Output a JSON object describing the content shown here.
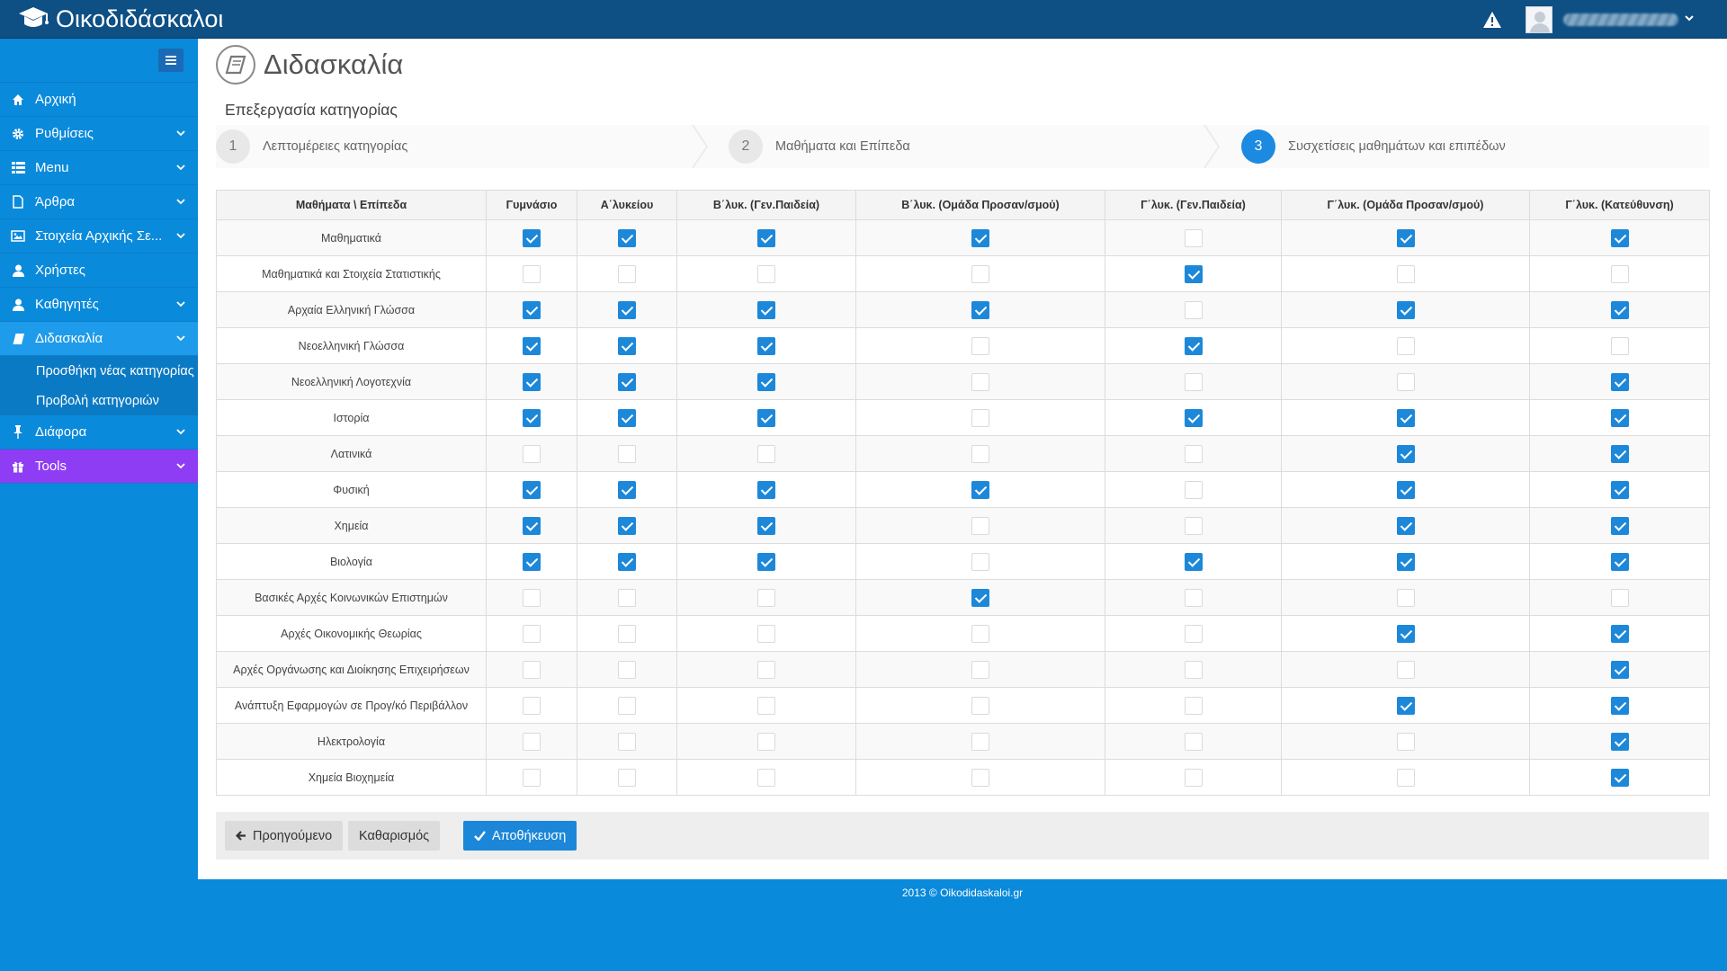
{
  "app": {
    "brand": "Οικοδιδάσκαλοι"
  },
  "topbar": {
    "alert_icon": "warning-icon",
    "user_caret_icon": "chevron-down-icon"
  },
  "sidebar": {
    "toggle_icon": "menu-toggle-icon",
    "items": [
      {
        "label": "Αρχική",
        "icon": "home-icon",
        "chevron": false
      },
      {
        "label": "Ρυθμίσεις",
        "icon": "gear-icon",
        "chevron": true
      },
      {
        "label": "Menu",
        "icon": "grid-icon",
        "chevron": true
      },
      {
        "label": "Άρθρα",
        "icon": "document-icon",
        "chevron": true
      },
      {
        "label": "Στοιχεία Αρχικής Σε...",
        "icon": "image-icon",
        "chevron": true
      },
      {
        "label": "Χρήστες",
        "icon": "user-icon",
        "chevron": false
      },
      {
        "label": "Καθηγητές",
        "icon": "user-icon",
        "chevron": true
      },
      {
        "label": "Διδασκαλία",
        "icon": "book-icon",
        "chevron": true
      },
      {
        "label": "Διάφορα",
        "icon": "pin-icon",
        "chevron": true
      },
      {
        "label": "Tools",
        "icon": "gift-icon",
        "chevron": true
      }
    ],
    "subitems": [
      {
        "label": "Προσθήκη νέας κατηγορίας"
      },
      {
        "label": "Προβολή κατηγοριών"
      }
    ]
  },
  "page": {
    "title": "Διδασκαλία",
    "section_title": "Επεξεργασία κατηγορίας"
  },
  "wizard": {
    "steps": [
      {
        "num": "1",
        "label": "Λεπτομέρειες κατηγορίας"
      },
      {
        "num": "2",
        "label": "Μαθήματα και Επίπεδα"
      },
      {
        "num": "3",
        "label": "Συσχετίσεις μαθημάτων και επιπέδων"
      }
    ],
    "current": "3"
  },
  "table": {
    "corner": "Μαθήματα \\ Επίπεδα",
    "columns": [
      "Γυμνάσιο",
      "Α΄λυκείου",
      "Β΄λυκ. (Γεν.Παιδεία)",
      "Β΄λυκ. (Ομάδα Προσαν/σμού)",
      "Γ΄λυκ. (Γεν.Παιδεία)",
      "Γ΄λυκ. (Ομάδα Προσαν/σμού)",
      "Γ΄λυκ. (Κατεύθυνση)"
    ],
    "rows": [
      {
        "subject": "Μαθηματικά",
        "checks": [
          true,
          true,
          true,
          true,
          false,
          true,
          true
        ]
      },
      {
        "subject": "Μαθηματικά και Στοιχεία Στατιστικής",
        "checks": [
          false,
          false,
          false,
          false,
          true,
          false,
          false
        ]
      },
      {
        "subject": "Αρχαία Ελληνική Γλώσσα",
        "checks": [
          true,
          true,
          true,
          true,
          false,
          true,
          true
        ]
      },
      {
        "subject": "Νεοελληνική Γλώσσα",
        "checks": [
          true,
          true,
          true,
          false,
          true,
          false,
          false
        ]
      },
      {
        "subject": "Νεοελληνική Λογοτεχνία",
        "checks": [
          true,
          true,
          true,
          false,
          false,
          false,
          true
        ]
      },
      {
        "subject": "Ιστορία",
        "checks": [
          true,
          true,
          true,
          false,
          true,
          true,
          true
        ]
      },
      {
        "subject": "Λατινικά",
        "checks": [
          false,
          false,
          false,
          false,
          false,
          true,
          true
        ]
      },
      {
        "subject": "Φυσική",
        "checks": [
          true,
          true,
          true,
          true,
          false,
          true,
          true
        ]
      },
      {
        "subject": "Χημεία",
        "checks": [
          true,
          true,
          true,
          false,
          false,
          true,
          true
        ]
      },
      {
        "subject": "Βιολογία",
        "checks": [
          true,
          true,
          true,
          false,
          true,
          true,
          true
        ]
      },
      {
        "subject": "Βασικές Αρχές Κοινωνικών Επιστημών",
        "checks": [
          false,
          false,
          false,
          true,
          false,
          false,
          false
        ]
      },
      {
        "subject": "Αρχές Οικονομικής Θεωρίας",
        "checks": [
          false,
          false,
          false,
          false,
          false,
          true,
          true
        ]
      },
      {
        "subject": "Αρχές Οργάνωσης και Διοίκησης Επιχειρήσεων",
        "checks": [
          false,
          false,
          false,
          false,
          false,
          false,
          true
        ]
      },
      {
        "subject": "Ανάπτυξη Εφαρμογών σε Προγ/κό Περιβάλλον",
        "checks": [
          false,
          false,
          false,
          false,
          false,
          true,
          true
        ]
      },
      {
        "subject": "Ηλεκτρολογία",
        "checks": [
          false,
          false,
          false,
          false,
          false,
          false,
          true
        ]
      },
      {
        "subject": "Χημεία Βιοχημεία",
        "checks": [
          false,
          false,
          false,
          false,
          false,
          false,
          true
        ]
      }
    ]
  },
  "actions": {
    "prev_label": "Προηγούμενο",
    "reset_label": "Καθαρισμός",
    "save_label": "Αποθήκευση"
  },
  "footer": {
    "text": "2013 © Oikodidaskaloi.gr"
  },
  "colors": {
    "accent": "#1c87d8",
    "topbar": "#0e4f84",
    "sidebar": "#0a8adb",
    "tools": "#8f3cf5"
  }
}
